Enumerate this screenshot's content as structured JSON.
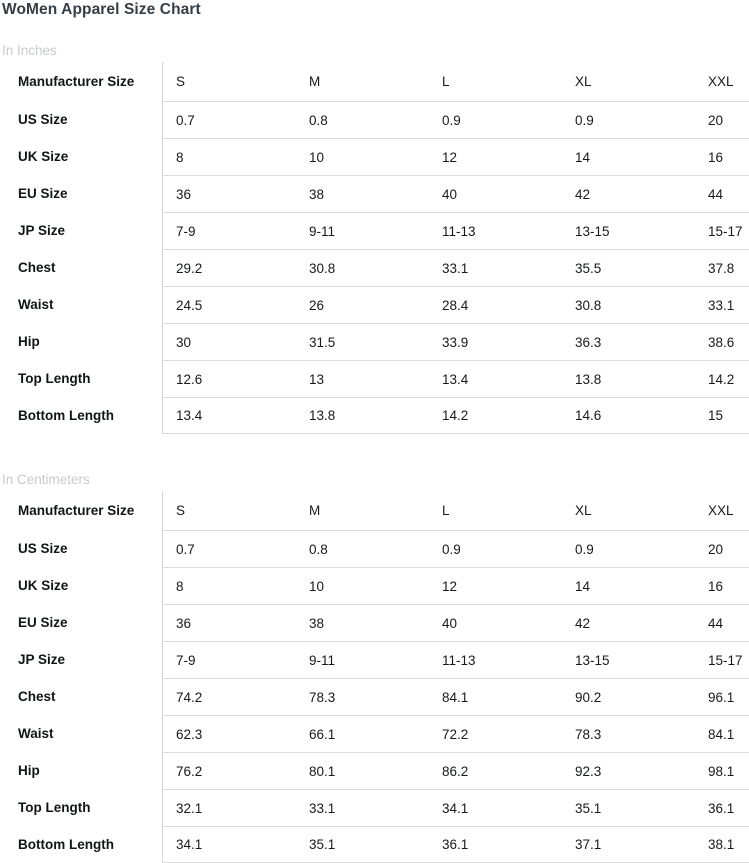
{
  "title": "WoMen Apparel Size Chart",
  "chart_data": [
    {
      "type": "table",
      "section_label": "In Inches",
      "row_header": "Manufacturer Size",
      "columns": [
        "S",
        "M",
        "L",
        "XL",
        "XXL"
      ],
      "rows": [
        {
          "label": "US Size",
          "values": [
            "0.7",
            "0.8",
            "0.9",
            "0.9",
            "20"
          ]
        },
        {
          "label": "UK Size",
          "values": [
            "8",
            "10",
            "12",
            "14",
            "16"
          ]
        },
        {
          "label": "EU Size",
          "values": [
            "36",
            "38",
            "40",
            "42",
            "44"
          ]
        },
        {
          "label": "JP Size",
          "values": [
            "7-9",
            "9-11",
            "11-13",
            "13-15",
            "15-17"
          ]
        },
        {
          "label": "Chest",
          "values": [
            "29.2",
            "30.8",
            "33.1",
            "35.5",
            "37.8"
          ]
        },
        {
          "label": "Waist",
          "values": [
            "24.5",
            "26",
            "28.4",
            "30.8",
            "33.1"
          ]
        },
        {
          "label": "Hip",
          "values": [
            "30",
            "31.5",
            "33.9",
            "36.3",
            "38.6"
          ]
        },
        {
          "label": "Top Length",
          "values": [
            "12.6",
            "13",
            "13.4",
            "13.8",
            "14.2"
          ]
        },
        {
          "label": "Bottom Length",
          "values": [
            "13.4",
            "13.8",
            "14.2",
            "14.6",
            "15"
          ]
        }
      ]
    },
    {
      "type": "table",
      "section_label": "In Centimeters",
      "row_header": "Manufacturer Size",
      "columns": [
        "S",
        "M",
        "L",
        "XL",
        "XXL"
      ],
      "rows": [
        {
          "label": "US Size",
          "values": [
            "0.7",
            "0.8",
            "0.9",
            "0.9",
            "20"
          ]
        },
        {
          "label": "UK Size",
          "values": [
            "8",
            "10",
            "12",
            "14",
            "16"
          ]
        },
        {
          "label": "EU Size",
          "values": [
            "36",
            "38",
            "40",
            "42",
            "44"
          ]
        },
        {
          "label": "JP Size",
          "values": [
            "7-9",
            "9-11",
            "11-13",
            "13-15",
            "15-17"
          ]
        },
        {
          "label": "Chest",
          "values": [
            "74.2",
            "78.3",
            "84.1",
            "90.2",
            "96.1"
          ]
        },
        {
          "label": "Waist",
          "values": [
            "62.3",
            "66.1",
            "72.2",
            "78.3",
            "84.1"
          ]
        },
        {
          "label": "Hip",
          "values": [
            "76.2",
            "80.1",
            "86.2",
            "92.3",
            "98.1"
          ]
        },
        {
          "label": "Top Length",
          "values": [
            "32.1",
            "33.1",
            "34.1",
            "35.1",
            "36.1"
          ]
        },
        {
          "label": "Bottom Length",
          "values": [
            "34.1",
            "35.1",
            "36.1",
            "37.1",
            "38.1"
          ]
        }
      ]
    }
  ],
  "colors": {
    "background": "#ffffff",
    "title_text": "#353e46",
    "section_label_text": "#c9cbcb",
    "row_label_text": "#121517",
    "cell_text": "#17191b",
    "row_border": "#d9dbdb",
    "column_divider": "#d3d6d6"
  }
}
